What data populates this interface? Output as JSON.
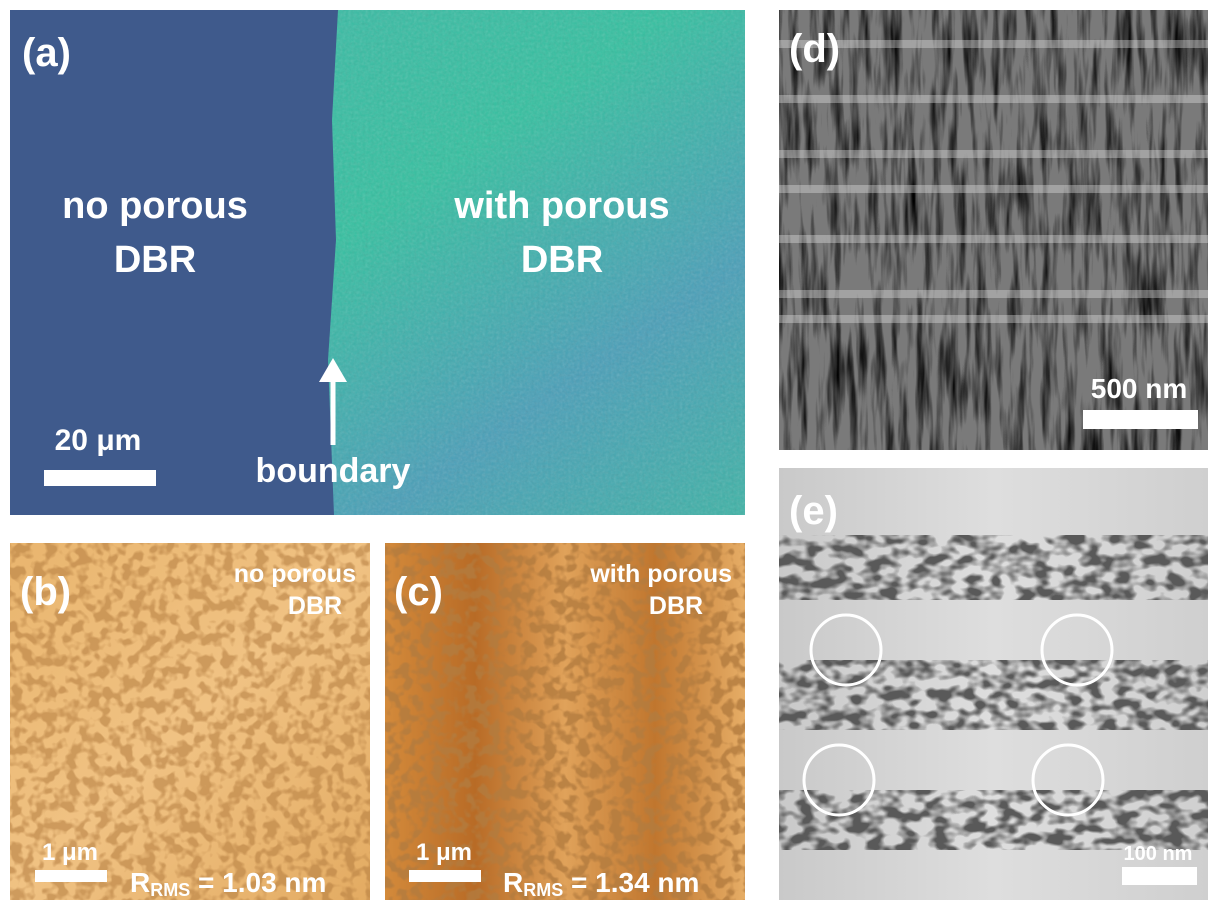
{
  "panels": {
    "a": {
      "label": "(a)",
      "left_text": [
        "no porous",
        "DBR"
      ],
      "right_text": [
        "with porous",
        "DBR"
      ],
      "scale_bar": "20 μm",
      "arrow_label": "boundary"
    },
    "b": {
      "label": "(b)",
      "text": [
        "no porous",
        "DBR"
      ],
      "scale_bar": "1 μm",
      "roughness": {
        "symbol": "R",
        "subscript": "RMS",
        "value": " = 1.03 nm"
      }
    },
    "c": {
      "label": "(c)",
      "text": [
        "with porous",
        "DBR"
      ],
      "scale_bar": "1 μm",
      "roughness": {
        "symbol": "R",
        "subscript": "RMS",
        "value": " = 1.34 nm"
      }
    },
    "d": {
      "label": "(d)",
      "scale_bar": "500 nm"
    },
    "e": {
      "label": "(e)",
      "scale_bar": "100 nm"
    }
  }
}
